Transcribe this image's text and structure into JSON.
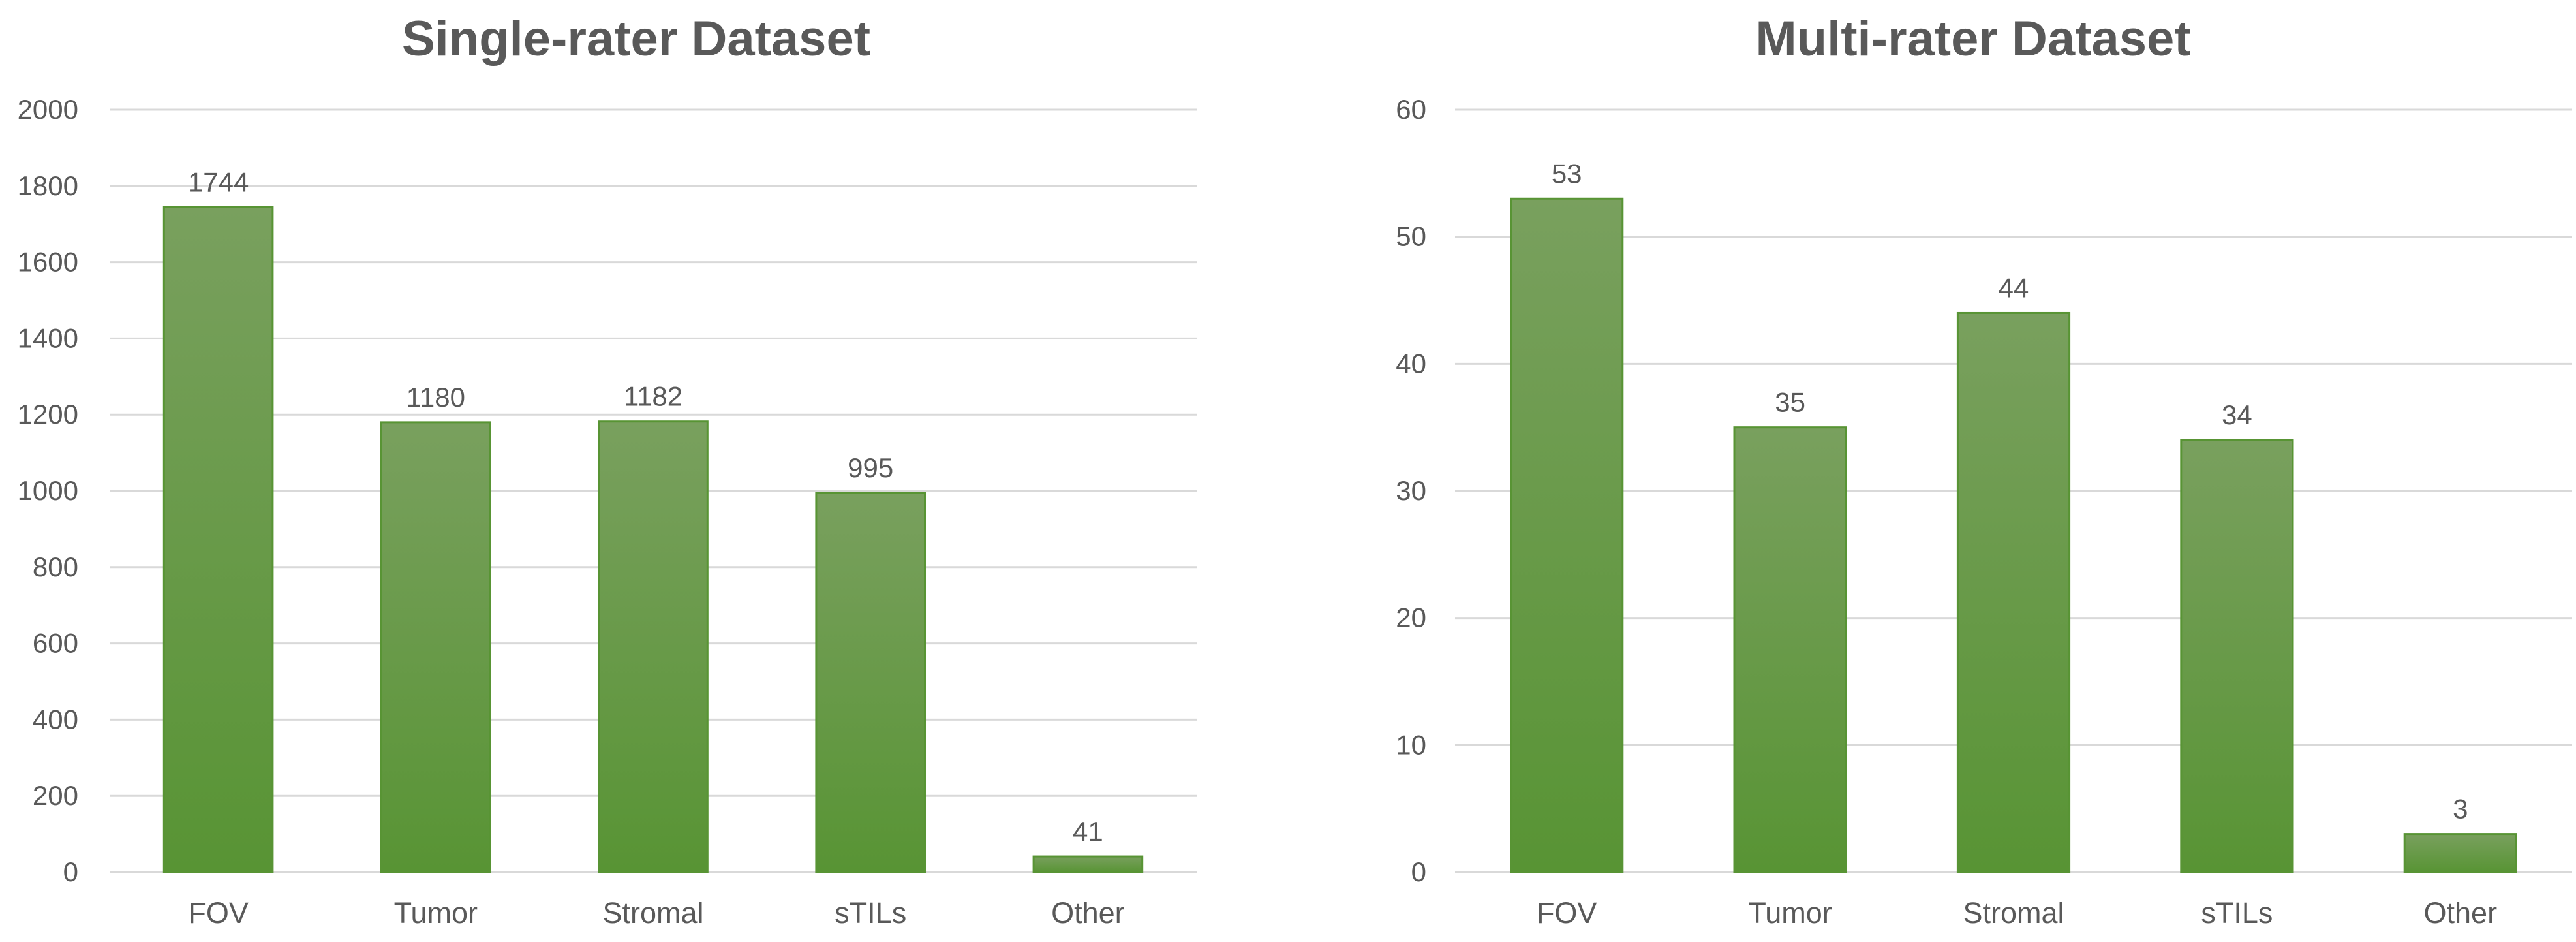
{
  "colors": {
    "bar_top": "#79a05e",
    "bar_bottom": "#589434",
    "grid": "#d9d9d9",
    "text": "#595959"
  },
  "chart_data": [
    {
      "type": "bar",
      "title": "Single-rater Dataset",
      "categories": [
        "FOV",
        "Tumor",
        "Stromal",
        "sTILs",
        "Other"
      ],
      "values": [
        1744,
        1180,
        1182,
        995,
        41
      ],
      "ylim": [
        0,
        2000
      ],
      "yticks": [
        0,
        200,
        400,
        600,
        800,
        1000,
        1200,
        1400,
        1600,
        1800,
        2000
      ],
      "grid": true,
      "data_labels": true
    },
    {
      "type": "bar",
      "title": "Multi-rater Dataset",
      "categories": [
        "FOV",
        "Tumor",
        "Stromal",
        "sTILs",
        "Other"
      ],
      "values": [
        53,
        35,
        44,
        34,
        3
      ],
      "ylim": [
        0,
        60
      ],
      "yticks": [
        0,
        10,
        20,
        30,
        40,
        50,
        60
      ],
      "grid": true,
      "data_labels": true
    }
  ]
}
